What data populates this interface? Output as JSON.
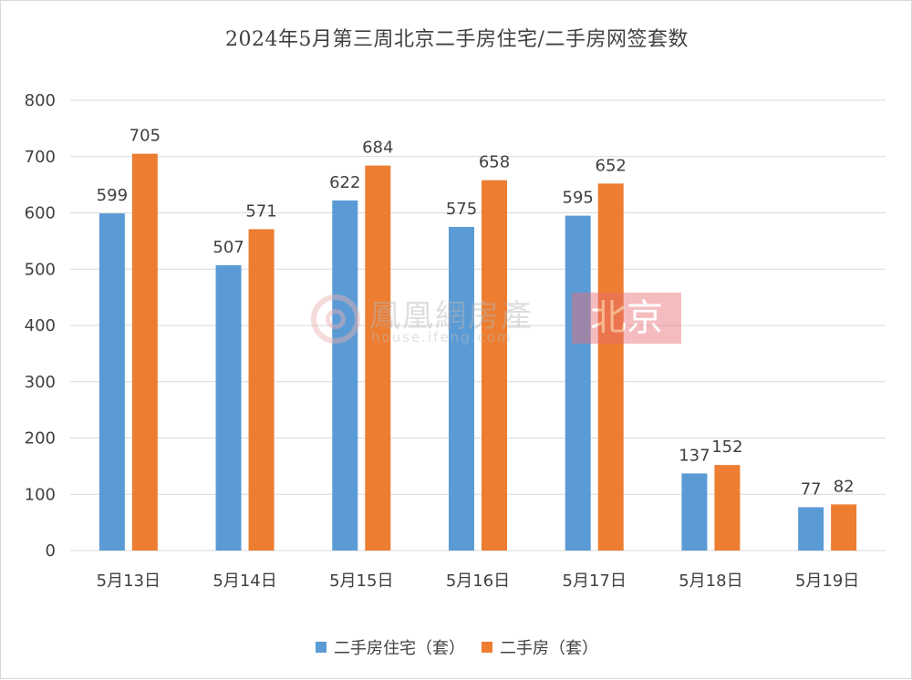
{
  "colors": {
    "series1": "#5B9BD5",
    "series2": "#ED7D31",
    "grid": "#d9d9d9",
    "text": "#404040"
  },
  "watermark": {
    "brand": "鳳凰網房產",
    "url": "house.ifeng.com",
    "city": "北京",
    "logo_icon": "ifeng-phoenix-logo-icon"
  },
  "chart_data": {
    "type": "bar",
    "title": "2024年5月第三周北京二手房住宅/二手房网签套数",
    "xlabel": "",
    "ylabel": "",
    "ylim": [
      0,
      800
    ],
    "yticks": [
      0,
      100,
      200,
      300,
      400,
      500,
      600,
      700,
      800
    ],
    "grid": true,
    "legend_position": "bottom",
    "categories": [
      "5月13日",
      "5月14日",
      "5月15日",
      "5月16日",
      "5月17日",
      "5月18日",
      "5月19日"
    ],
    "series": [
      {
        "name": "二手房住宅（套）",
        "values": [
          599,
          507,
          622,
          575,
          595,
          137,
          77
        ]
      },
      {
        "name": "二手房（套）",
        "values": [
          705,
          571,
          684,
          658,
          652,
          152,
          82
        ]
      }
    ]
  }
}
